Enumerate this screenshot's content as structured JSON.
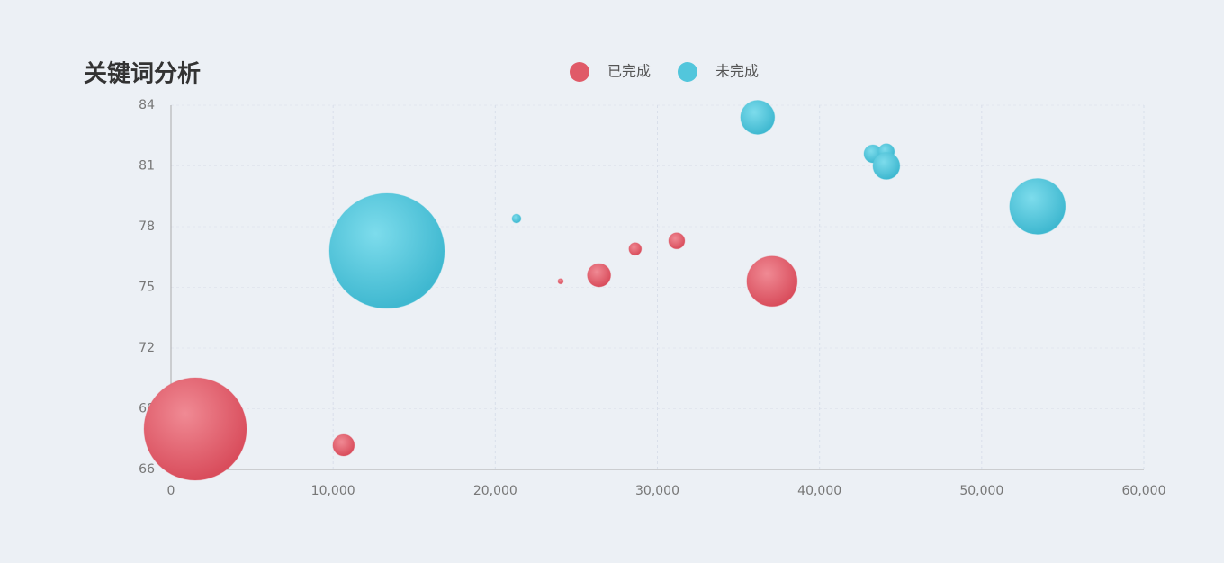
{
  "chart_data": {
    "type": "scatter",
    "title": "关键词分析",
    "series": [
      {
        "name": "已完成",
        "color": "#e05a68",
        "x": [
          1500,
          10650,
          24030,
          26400,
          28630,
          31190,
          37070
        ],
        "values": [
          68.0,
          67.2,
          75.3,
          75.6,
          76.9,
          77.3,
          75.3
        ],
        "sizes": [
          57,
          12,
          3,
          13,
          7,
          9,
          28
        ]
      },
      {
        "name": "未完成",
        "color": "#52c6dc",
        "x": [
          13320,
          21310,
          36180,
          43290,
          44120,
          44120,
          53440
        ],
        "values": [
          76.8,
          78.4,
          83.4,
          81.6,
          81.7,
          81.0,
          79.0
        ],
        "sizes": [
          64,
          5,
          19,
          10,
          9,
          15,
          31
        ]
      }
    ],
    "xlim": [
      0,
      60000
    ],
    "xticks": [
      0,
      {
        "value": 10000,
        "label": "10,000"
      },
      {
        "value": 20000,
        "label": "20,000"
      },
      {
        "value": 30000,
        "label": "30,000"
      },
      {
        "value": 40000,
        "label": "40,000"
      },
      {
        "value": 50000,
        "label": "50,000"
      },
      {
        "value": 60000,
        "label": "60,000"
      }
    ],
    "ylim": [
      66,
      84
    ],
    "yticks": [
      66,
      69,
      72,
      75,
      78,
      81,
      84
    ],
    "grid": true
  }
}
